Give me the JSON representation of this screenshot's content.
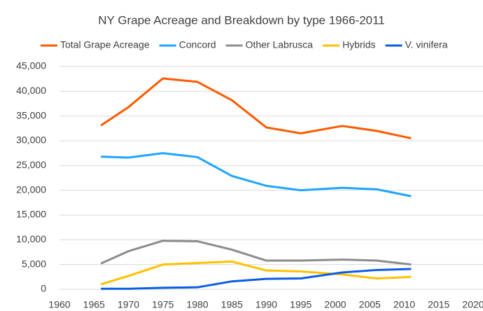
{
  "chart_data": {
    "type": "line",
    "title": "NY Grape Acreage and Breakdown by type 1966-2011",
    "x": [
      1966,
      1970,
      1975,
      1980,
      1985,
      1990,
      1995,
      2001,
      2006,
      2011
    ],
    "series": [
      {
        "name": "Total Grape Acreage",
        "color": "#ff5a00",
        "values": [
          33100,
          36800,
          42600,
          41900,
          38200,
          32700,
          31500,
          33000,
          32000,
          30500
        ]
      },
      {
        "name": "Concord",
        "color": "#1ea5ff",
        "values": [
          26800,
          26600,
          27500,
          26700,
          22900,
          20900,
          20000,
          20500,
          20200,
          18800
        ]
      },
      {
        "name": "Other Labrusca",
        "color": "#8c8c8c",
        "values": [
          5200,
          7700,
          9800,
          9700,
          8000,
          5800,
          5800,
          6000,
          5800,
          5000
        ]
      },
      {
        "name": "Hybrids",
        "color": "#ffc000",
        "values": [
          1000,
          2700,
          5000,
          5300,
          5600,
          3800,
          3600,
          3000,
          2200,
          2500
        ]
      },
      {
        "name": "V. vinifera",
        "color": "#0a5ce6",
        "values": [
          100,
          100,
          300,
          400,
          1600,
          2100,
          2200,
          3400,
          3900,
          4100
        ]
      }
    ],
    "xlim": [
      1960,
      2020
    ],
    "xticks": [
      1960,
      1965,
      1970,
      1975,
      1980,
      1985,
      1990,
      1995,
      2000,
      2005,
      2010,
      2015,
      2020
    ],
    "ylim": [
      0,
      45000
    ],
    "yticks": [
      0,
      {
        "value": 5000,
        "label": "5,000"
      },
      {
        "value": 10000,
        "label": "10,000"
      },
      {
        "value": 15000,
        "label": "15,000"
      },
      {
        "value": 20000,
        "label": "20,000"
      },
      {
        "value": 25000,
        "label": "25,000"
      },
      {
        "value": 30000,
        "label": "30,000"
      },
      {
        "value": 35000,
        "label": "35,000"
      },
      {
        "value": 40000,
        "label": "40,000"
      },
      {
        "value": 45000,
        "label": "45,000"
      }
    ],
    "grid": true,
    "legend": "top"
  }
}
